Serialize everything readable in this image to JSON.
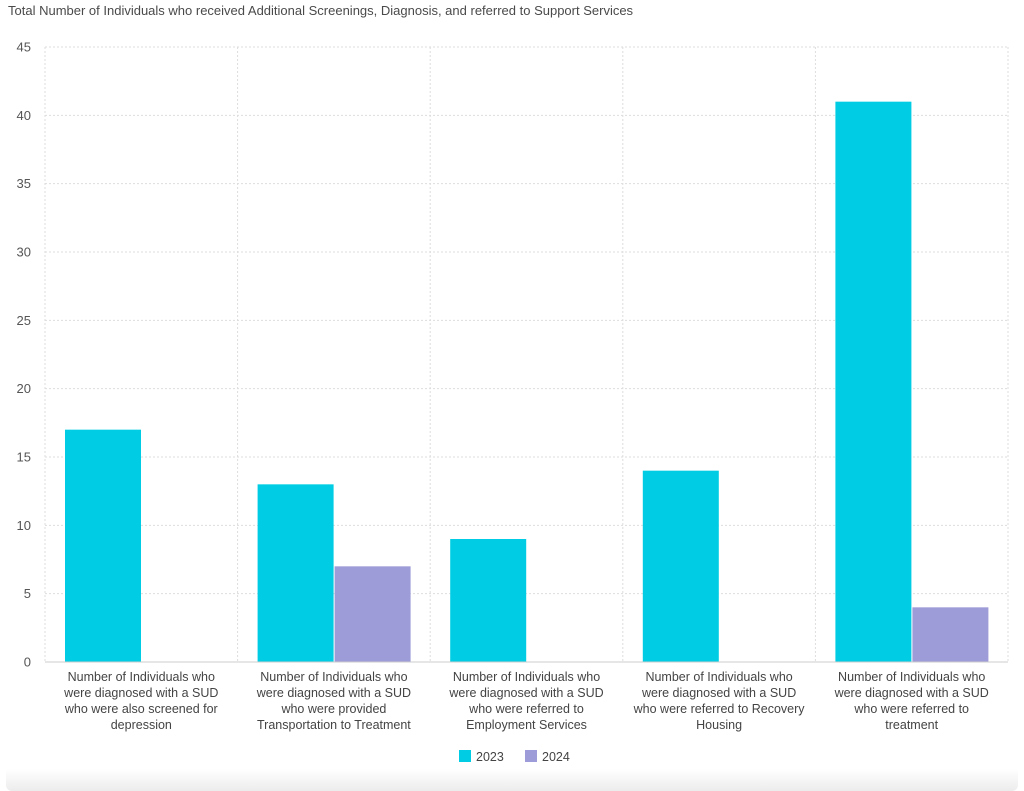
{
  "chart_data": {
    "type": "bar",
    "title": "Total Number of Individuals who received Additional Screenings, Diagnosis, and referred to Support Services",
    "categories": [
      [
        "Number of Individuals who",
        "were diagnosed with a SUD",
        "who were also screened for",
        "depression"
      ],
      [
        "Number of Individuals who",
        "were diagnosed with a SUD",
        "who were provided",
        "Transportation to Treatment"
      ],
      [
        "Number of Individuals who",
        "were diagnosed with a SUD",
        "who were referred to",
        "Employment Services"
      ],
      [
        "Number of Individuals who",
        "were diagnosed with a SUD",
        "who were referred to Recovery",
        "Housing"
      ],
      [
        "Number of Individuals who",
        "were diagnosed with a SUD",
        "who were referred to",
        "treatment"
      ]
    ],
    "series": [
      {
        "name": "2023",
        "color": "#00cde3",
        "values": [
          17,
          13,
          9,
          14,
          41
        ]
      },
      {
        "name": "2024",
        "color": "#9d9bd8",
        "values": [
          null,
          7,
          null,
          null,
          4
        ]
      }
    ],
    "ylim": [
      0,
      45
    ],
    "yticks": [
      0,
      5,
      10,
      15,
      20,
      25,
      30,
      35,
      40,
      45
    ],
    "grid": true,
    "legend": "bottom-center"
  }
}
